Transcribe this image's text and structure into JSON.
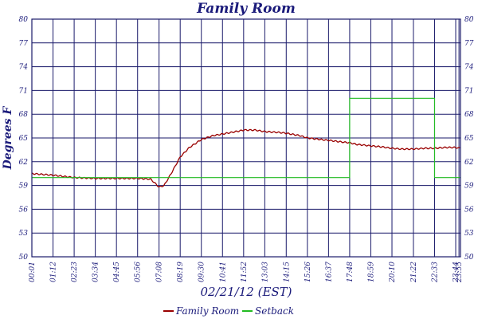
{
  "chart_data": {
    "type": "line",
    "title": "Family Room",
    "xlabel": "02/21/12 (EST)",
    "ylabel": "Degrees F",
    "ylim": [
      50,
      80
    ],
    "xlim": [
      1,
      1440
    ],
    "grid": true,
    "legend_position": "bottom",
    "y_ticks": [
      "80",
      "77",
      "74",
      "71",
      "68",
      "65",
      "62",
      "59",
      "56",
      "53",
      "50"
    ],
    "y_tick_values": [
      80,
      77,
      74,
      71,
      68,
      65,
      62,
      59,
      56,
      53,
      50
    ],
    "x_tick_labels": [
      "00:01",
      "01:12",
      "02:23",
      "03:34",
      "04:45",
      "05:56",
      "07:08",
      "08:19",
      "09:30",
      "10:41",
      "11:52",
      "13:03",
      "14:15",
      "15:26",
      "16:37",
      "17:48",
      "18:59",
      "20:10",
      "21:22",
      "22:33",
      "23:44",
      "23:55"
    ],
    "x_tick_values": [
      1,
      72,
      143,
      214,
      285,
      356,
      428,
      499,
      570,
      641,
      712,
      783,
      855,
      926,
      997,
      1068,
      1139,
      1210,
      1282,
      1353,
      1424,
      1435
    ],
    "series": [
      {
        "name": "Family Room",
        "color": "#990000",
        "x": [
          1,
          72,
          143,
          214,
          285,
          356,
          400,
          428,
          445,
          470,
          499,
          530,
          570,
          610,
          641,
          700,
          712,
          750,
          783,
          830,
          855,
          900,
          926,
          997,
          1040,
          1068,
          1090,
          1139,
          1170,
          1210,
          1240,
          1282,
          1320,
          1353,
          1390,
          1424,
          1440
        ],
        "y": [
          60.5,
          60.3,
          60.0,
          59.9,
          59.9,
          59.9,
          59.8,
          58.8,
          59.0,
          60.6,
          62.6,
          63.8,
          64.8,
          65.3,
          65.5,
          65.9,
          66.0,
          66.0,
          65.8,
          65.7,
          65.6,
          65.3,
          65.0,
          64.7,
          64.5,
          64.4,
          64.2,
          64.0,
          63.9,
          63.7,
          63.6,
          63.6,
          63.7,
          63.7,
          63.8,
          63.8,
          63.7
        ]
      },
      {
        "name": "Setback",
        "color": "#22bb22",
        "x": [
          1,
          1068,
          1068,
          1353,
          1353,
          1440
        ],
        "y": [
          60,
          60,
          70,
          70,
          60,
          60
        ]
      }
    ]
  }
}
